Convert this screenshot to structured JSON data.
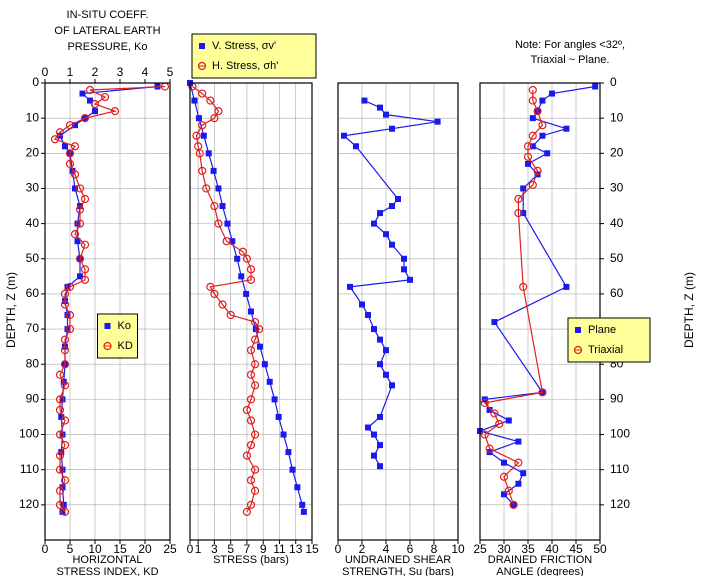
{
  "chart_data": [
    {
      "type": "profile",
      "top_title": [
        "IN-SITU COEFF.",
        "OF LATERAL EARTH",
        "PRESSURE, Ko"
      ],
      "bottom_title": [
        "HORIZONTAL",
        "STRESS INDEX, KD"
      ],
      "ylabel": "DEPTH, Z (m)",
      "depth_axis": "left",
      "xlim": [
        0,
        25
      ],
      "xticks": [
        0,
        5,
        10,
        15,
        20,
        25
      ],
      "x2lim": [
        0,
        5
      ],
      "x2ticks": [
        0,
        1,
        2,
        3,
        4,
        5
      ],
      "ylim": [
        0,
        130
      ],
      "yticks": [
        0,
        10,
        20,
        30,
        40,
        50,
        60,
        70,
        80,
        90,
        100,
        110,
        120
      ],
      "grid": true,
      "legend_position": "center",
      "series": [
        {
          "name": "Ko",
          "color": "#1a1aee",
          "marker": "square",
          "axis": "x2",
          "depth": [
            1,
            3,
            5,
            8,
            10,
            12,
            15,
            18,
            20,
            25,
            30,
            35,
            40,
            45,
            50,
            55,
            58,
            62,
            66,
            70,
            75,
            80,
            85,
            90,
            95,
            100,
            105,
            110,
            115,
            120,
            122
          ],
          "values": [
            4.5,
            1.5,
            1.8,
            2.0,
            1.6,
            1.2,
            0.6,
            0.8,
            1.0,
            1.1,
            1.2,
            1.4,
            1.3,
            1.3,
            1.4,
            1.4,
            0.9,
            0.8,
            0.9,
            0.9,
            0.8,
            0.8,
            0.75,
            0.7,
            0.65,
            0.7,
            0.65,
            0.7,
            0.7,
            0.75,
            0.7
          ]
        },
        {
          "name": "KD",
          "color": "#e0201e",
          "marker": "circle",
          "depth": [
            1,
            2,
            4,
            6,
            8,
            10,
            12,
            14,
            16,
            18,
            20,
            23,
            26,
            30,
            33,
            36,
            40,
            43,
            46,
            50,
            53,
            56,
            58,
            60,
            63,
            66,
            70,
            73,
            76,
            80,
            83,
            86,
            90,
            93,
            96,
            100,
            103,
            106,
            110,
            113,
            116,
            120,
            122
          ],
          "values": [
            24,
            9,
            12,
            10,
            14,
            8,
            5,
            3,
            2,
            6,
            5,
            5,
            6,
            7,
            8,
            7,
            7,
            6,
            8,
            7,
            8,
            8,
            5,
            4,
            4,
            5,
            5,
            4,
            4,
            4,
            3,
            4,
            3,
            3,
            4,
            3,
            4,
            3,
            3,
            4,
            3,
            3,
            4
          ]
        }
      ]
    },
    {
      "type": "profile",
      "bottom_title": [
        "STRESS (bars)"
      ],
      "depth_axis": "none",
      "xlim": [
        0,
        15
      ],
      "xticks": [
        0,
        1,
        3,
        5,
        7,
        9,
        11,
        13,
        15
      ],
      "ylim": [
        0,
        130
      ],
      "yticks": [
        0,
        10,
        20,
        30,
        40,
        50,
        60,
        70,
        80,
        90,
        100,
        110,
        120
      ],
      "grid": true,
      "legend_position": "top",
      "series": [
        {
          "name": "V. Stress, σv'",
          "color": "#1a1aee",
          "marker": "square",
          "depth": [
            0,
            5,
            10,
            15,
            20,
            25,
            30,
            35,
            40,
            45,
            50,
            55,
            60,
            65,
            70,
            75,
            80,
            85,
            90,
            95,
            100,
            105,
            110,
            115,
            120,
            122
          ],
          "values": [
            0,
            0.55,
            1.1,
            1.7,
            2.3,
            2.9,
            3.5,
            4.0,
            4.6,
            5.2,
            5.8,
            6.3,
            6.9,
            7.5,
            8.1,
            8.6,
            9.2,
            9.8,
            10.4,
            10.9,
            11.5,
            12.1,
            12.6,
            13.2,
            13.8,
            14.0
          ]
        },
        {
          "name": "H. Stress, σh'",
          "color": "#e0201e",
          "marker": "circle",
          "depth": [
            1,
            3,
            5,
            8,
            10,
            12,
            15,
            18,
            20,
            25,
            30,
            35,
            40,
            45,
            48,
            50,
            53,
            56,
            58,
            60,
            63,
            66,
            68,
            70,
            73,
            76,
            80,
            83,
            86,
            90,
            93,
            96,
            100,
            103,
            106,
            110,
            113,
            116,
            120,
            122
          ],
          "values": [
            0.3,
            1.5,
            2.5,
            3.5,
            3.0,
            1.5,
            0.8,
            1.0,
            1.2,
            1.5,
            2.0,
            3.0,
            3.5,
            4.5,
            6.5,
            7.0,
            7.5,
            7.5,
            2.5,
            3.0,
            4.0,
            5.0,
            8.0,
            8.5,
            8.0,
            7.5,
            8.0,
            7.5,
            8.0,
            7.5,
            7.0,
            7.5,
            8.0,
            7.5,
            7.0,
            8.0,
            7.5,
            8.0,
            7.5,
            7.0
          ]
        }
      ]
    },
    {
      "type": "profile",
      "bottom_title": [
        "UNDRAINED SHEAR",
        "STRENGTH, Su (bars)"
      ],
      "depth_axis": "none",
      "xlim": [
        0,
        10
      ],
      "xticks": [
        0,
        2,
        4,
        6,
        8,
        10
      ],
      "ylim": [
        0,
        130
      ],
      "yticks": [
        0,
        10,
        20,
        30,
        40,
        50,
        60,
        70,
        80,
        90,
        100,
        110,
        120
      ],
      "grid": true,
      "series": [
        {
          "name": "Su",
          "color": "#1a1aee",
          "marker": "square",
          "depth": [
            5,
            7,
            9,
            11,
            13,
            15,
            18,
            33,
            35,
            37,
            40,
            43,
            46,
            50,
            53,
            56,
            58,
            63,
            66,
            70,
            73,
            76,
            80,
            83,
            86,
            95,
            98,
            100,
            103,
            106,
            109
          ],
          "values": [
            2.2,
            3.5,
            4.0,
            8.3,
            4.5,
            0.5,
            1.5,
            5.0,
            4.5,
            3.5,
            3.0,
            4.0,
            4.5,
            5.5,
            5.5,
            6.0,
            1.0,
            2.0,
            2.5,
            3.0,
            3.5,
            4.0,
            3.5,
            4.0,
            4.5,
            3.5,
            2.5,
            3.0,
            3.5,
            3.0,
            3.5
          ]
        }
      ]
    },
    {
      "type": "profile",
      "note": [
        "Note: For angles <32º,",
        "Triaxial ~ Plane."
      ],
      "bottom_title": [
        "DRAINED FRICTION",
        "ANGLE (degrees)"
      ],
      "ylabel": "DEPTH, Z (m)",
      "depth_axis": "right",
      "xlim": [
        25,
        50
      ],
      "xticks": [
        25,
        30,
        35,
        40,
        45,
        50
      ],
      "ylim": [
        0,
        130
      ],
      "yticks": [
        0,
        10,
        20,
        30,
        40,
        50,
        60,
        70,
        80,
        90,
        100,
        110,
        120
      ],
      "grid": true,
      "legend_position": "right",
      "series": [
        {
          "name": "Plane",
          "color": "#1a1aee",
          "marker": "square",
          "depth": [
            1,
            3,
            5,
            8,
            10,
            13,
            15,
            18,
            20,
            23,
            26,
            30,
            37,
            58,
            68,
            88,
            90,
            93,
            96,
            99,
            102,
            105,
            108,
            111,
            114,
            117,
            120
          ],
          "values": [
            49,
            40,
            38,
            37,
            36,
            43,
            38,
            36,
            39,
            35,
            37,
            34,
            34,
            43,
            28,
            38,
            26,
            27,
            31,
            25,
            33,
            27,
            30,
            34,
            33,
            30,
            32
          ]
        },
        {
          "name": "Triaxial",
          "color": "#e0201e",
          "marker": "circle",
          "depth": [
            2,
            5,
            8,
            12,
            15,
            18,
            21,
            25,
            29,
            33,
            37,
            58,
            88,
            91,
            94,
            97,
            100,
            104,
            108,
            112,
            116,
            120
          ],
          "values": [
            36,
            36,
            37,
            38,
            36,
            35,
            35,
            37,
            36,
            33,
            33,
            34,
            38,
            26,
            28,
            29,
            26,
            27,
            33,
            30,
            31,
            32
          ]
        }
      ]
    }
  ]
}
